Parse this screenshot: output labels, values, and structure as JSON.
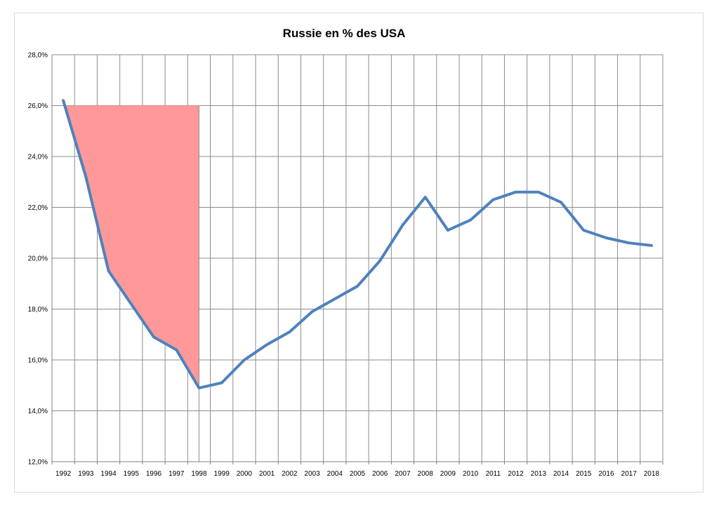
{
  "chart_data": {
    "type": "line",
    "title": "Russie en % des USA",
    "xlabel": "",
    "ylabel": "",
    "categories": [
      "1992",
      "1993",
      "1994",
      "1995",
      "1996",
      "1997",
      "1998",
      "1999",
      "2000",
      "2001",
      "2002",
      "2003",
      "2004",
      "2005",
      "2006",
      "2007",
      "2008",
      "2009",
      "2010",
      "2011",
      "2012",
      "2013",
      "2014",
      "2015",
      "2016",
      "2017",
      "2018"
    ],
    "series": [
      {
        "values": [
          26.2,
          23.2,
          19.5,
          18.2,
          16.9,
          16.4,
          14.9,
          15.1,
          16.0,
          16.6,
          17.1,
          17.9,
          18.4,
          18.9,
          19.9,
          21.3,
          22.4,
          21.1,
          21.5,
          22.3,
          22.6,
          22.6,
          22.2,
          21.1,
          20.8,
          20.6,
          20.5
        ],
        "color": "#4f81bd"
      }
    ],
    "highlight": {
      "from": "1992",
      "to": "1998",
      "level": 26.0,
      "color": "#ff9999"
    },
    "ylim": [
      12,
      28
    ],
    "yticks": [
      "12,0%",
      "14,0%",
      "16,0%",
      "18,0%",
      "20,0%",
      "22,0%",
      "24,0%",
      "26,0%",
      "28,0%"
    ],
    "grid": true,
    "legend": "none"
  }
}
